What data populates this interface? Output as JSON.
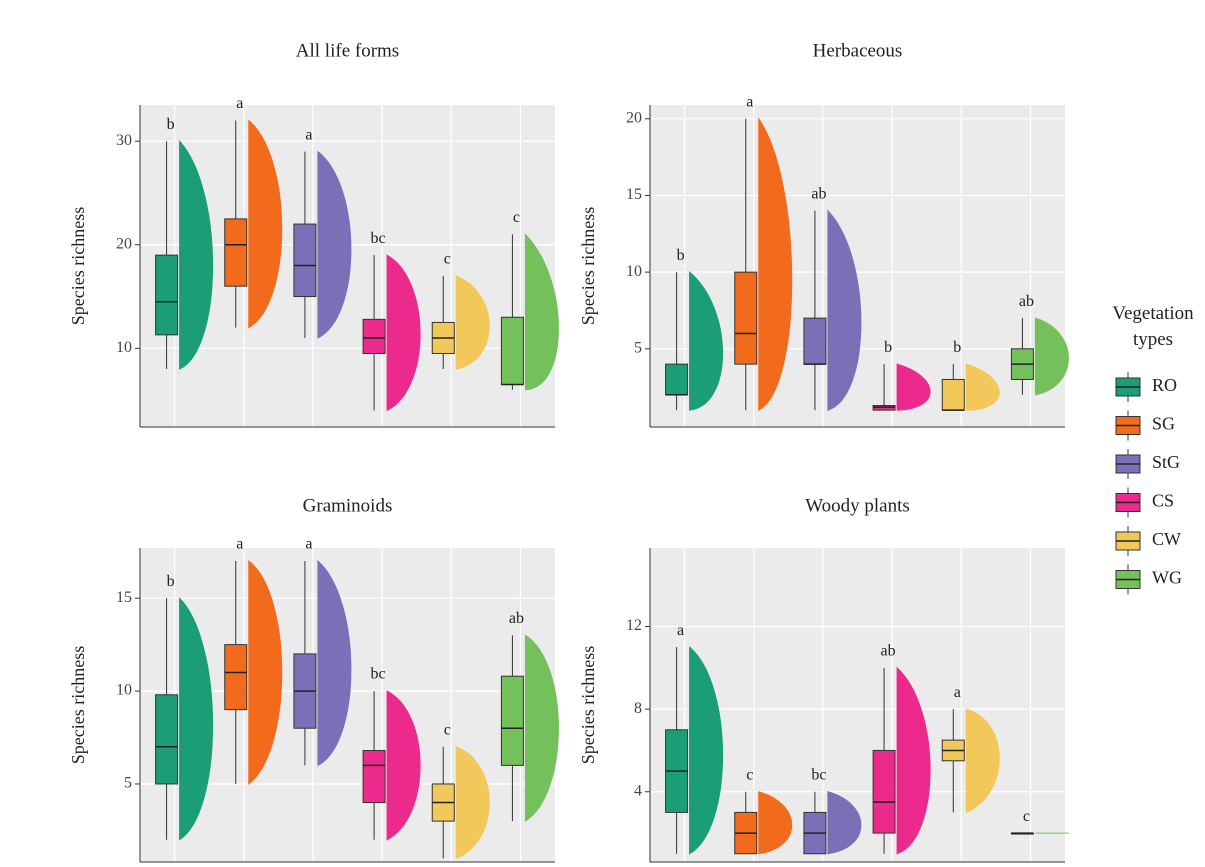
{
  "chart_data": [
    {
      "type": "box",
      "title": "All life forms",
      "y_label": "Species richness",
      "ylim": [
        2.4,
        33.5
      ],
      "yticks": [
        10,
        20,
        30
      ],
      "grid": true,
      "boxes": [
        {
          "min": 8,
          "q1": 11.3,
          "median": 14.5,
          "q3": 19,
          "max": 30
        },
        {
          "min": 12,
          "q1": 16,
          "median": 20,
          "q3": 22.5,
          "max": 32
        },
        {
          "min": 11,
          "q1": 15,
          "median": 18,
          "q3": 22,
          "max": 29
        },
        {
          "min": 4,
          "q1": 9.5,
          "median": 11,
          "q3": 12.8,
          "max": 19
        },
        {
          "min": 8,
          "q1": 9.5,
          "median": 11,
          "q3": 12.5,
          "max": 17
        },
        {
          "min": 6,
          "q1": 6.5,
          "median": 6.5,
          "q3": 13,
          "max": 21
        }
      ],
      "letters": [
        "b",
        "a",
        "a",
        "bc",
        "c",
        "c"
      ]
    },
    {
      "type": "box",
      "title": "Herbaceous",
      "y_label": "Species richness",
      "ylim": [
        -0.1,
        20.9
      ],
      "yticks": [
        5,
        10,
        15,
        20
      ],
      "grid": true,
      "boxes": [
        {
          "min": 1,
          "q1": 2,
          "median": 2,
          "q3": 4,
          "max": 10
        },
        {
          "min": 1,
          "q1": 4,
          "median": 6,
          "q3": 10,
          "max": 20
        },
        {
          "min": 1,
          "q1": 4,
          "median": 4,
          "q3": 7,
          "max": 14
        },
        {
          "min": 1,
          "q1": 1,
          "median": 1.2,
          "q3": 1.3,
          "max": 4
        },
        {
          "min": 1,
          "q1": 1,
          "median": 1,
          "q3": 3,
          "max": 4
        },
        {
          "min": 2,
          "q1": 3,
          "median": 4,
          "q3": 5,
          "max": 7
        }
      ],
      "letters": [
        "b",
        "a",
        "ab",
        "b",
        "b",
        "ab"
      ]
    },
    {
      "type": "box",
      "title": "Graminoids",
      "y_label": "Species richness",
      "ylim": [
        0.8,
        17.7
      ],
      "yticks": [
        5,
        10,
        15
      ],
      "grid": true,
      "boxes": [
        {
          "min": 2,
          "q1": 5,
          "median": 7,
          "q3": 9.8,
          "max": 15
        },
        {
          "min": 5,
          "q1": 9,
          "median": 11,
          "q3": 12.5,
          "max": 17
        },
        {
          "min": 6,
          "q1": 8,
          "median": 10,
          "q3": 12,
          "max": 17
        },
        {
          "min": 2,
          "q1": 4,
          "median": 6,
          "q3": 6.8,
          "max": 10
        },
        {
          "min": 1,
          "q1": 3,
          "median": 4,
          "q3": 5,
          "max": 7
        },
        {
          "min": 3,
          "q1": 6,
          "median": 8,
          "q3": 10.8,
          "max": 13
        }
      ],
      "letters": [
        "b",
        "a",
        "a",
        "bc",
        "c",
        "ab"
      ]
    },
    {
      "type": "box",
      "title": "Woody plants",
      "y_label": "Species richness",
      "ylim": [
        0.6,
        15.8
      ],
      "yticks": [
        4,
        8,
        12
      ],
      "grid": true,
      "boxes": [
        {
          "min": 1,
          "q1": 3,
          "median": 5,
          "q3": 7,
          "max": 11
        },
        {
          "min": 1,
          "q1": 1,
          "median": 2,
          "q3": 3,
          "max": 4
        },
        {
          "min": 1,
          "q1": 1,
          "median": 2,
          "q3": 3,
          "max": 4
        },
        {
          "min": 1,
          "q1": 2,
          "median": 3.5,
          "q3": 6,
          "max": 10
        },
        {
          "min": 3,
          "q1": 5.5,
          "median": 6,
          "q3": 6.5,
          "max": 8
        },
        {
          "min": 2,
          "q1": 2,
          "median": 2,
          "q3": 2,
          "max": 2
        }
      ],
      "letters": [
        "a",
        "c",
        "bc",
        "ab",
        "a",
        "c"
      ]
    }
  ],
  "legend": {
    "title": "Vegetation types",
    "items": [
      "RO",
      "SG",
      "StG",
      "CS",
      "CW",
      "WG"
    ],
    "colors": [
      "#1b9e77",
      "#f26b1d",
      "#7a70b8",
      "#ec2a8c",
      "#f2c85b",
      "#74c05a"
    ]
  }
}
